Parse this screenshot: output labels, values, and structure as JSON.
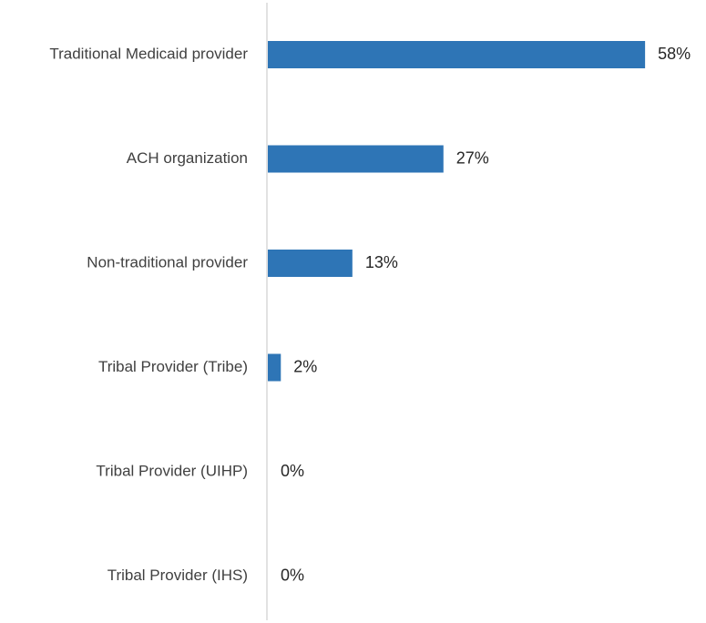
{
  "chart_data": {
    "type": "bar",
    "orientation": "horizontal",
    "categories": [
      "Traditional Medicaid provider",
      "ACH organization",
      "Non-traditional provider",
      "Tribal Provider (Tribe)",
      "Tribal Provider (UIHP)",
      "Tribal Provider (IHS)"
    ],
    "values": [
      58,
      27,
      13,
      2,
      0,
      0
    ],
    "value_labels": [
      "58%",
      "27%",
      "13%",
      "2%",
      "0%",
      "0%"
    ],
    "unit": "%",
    "xlim": [
      0,
      60
    ],
    "grid": false,
    "legend": "none",
    "colors": {
      "bar": "#2E75B6",
      "axis": "#D9D9D9",
      "category_text": "#404040",
      "value_text": "#262626"
    }
  }
}
